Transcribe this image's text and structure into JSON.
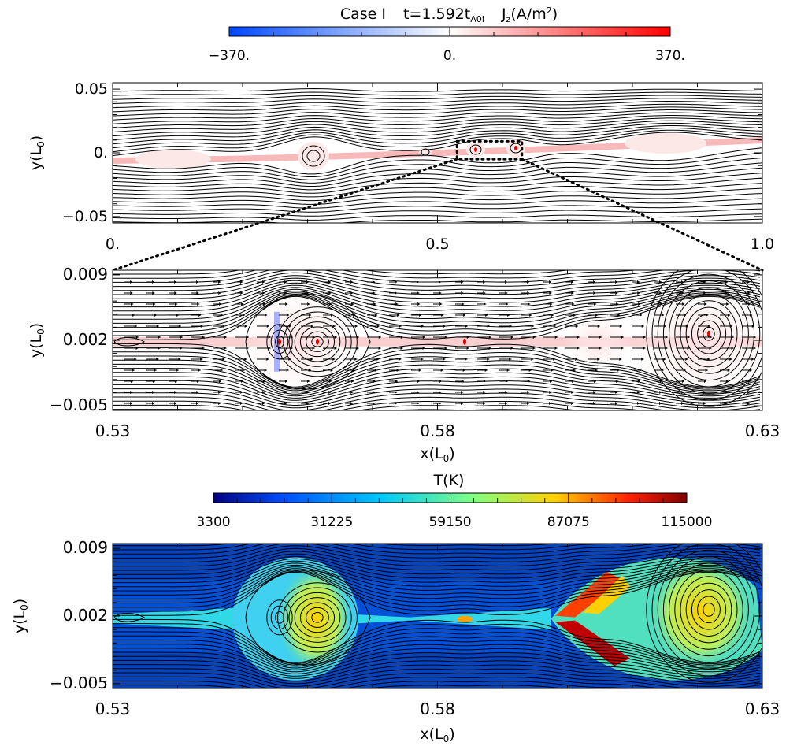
{
  "chart_data": [
    {
      "type": "heatmap",
      "panel": "Jz overview",
      "title": {
        "case": "Case I",
        "time_prefix": "t=1.592t",
        "time_sub": "A0I",
        "var": "J",
        "var_sub": "z",
        "units_open": "(A/m",
        "units_sup": "2",
        "units_close": ")"
      },
      "colorbar": {
        "ticks": [
          "−370.",
          "0.",
          "370."
        ],
        "vmin": -370,
        "vmax": 370,
        "colors": [
          "#0047ff",
          "#ffffff",
          "#ff0000"
        ]
      },
      "xlabel": "",
      "ylabel": {
        "main": "y(L",
        "sub": "0",
        "close": ")"
      },
      "xlim": [
        0.0,
        1.0
      ],
      "ylim": [
        -0.055,
        0.055
      ],
      "xticks": [
        "0.",
        "0.5",
        "1.0"
      ],
      "yticks": [
        "0.05",
        "0.",
        "−0.05"
      ],
      "zoom_box": {
        "x": [
          0.53,
          0.63
        ],
        "y": [
          -0.005,
          0.009
        ]
      },
      "islands_x": [
        0.31,
        0.49,
        0.56,
        0.62,
        0.84
      ]
    },
    {
      "type": "heatmap",
      "panel": "Jz zoom with velocity vectors",
      "xlabel": {
        "main": "x(L",
        "sub": "0",
        "close": ")"
      },
      "ylabel": {
        "main": "y(L",
        "sub": "0",
        "close": ")"
      },
      "xlim": [
        0.53,
        0.63
      ],
      "ylim": [
        -0.0055,
        0.0095
      ],
      "xticks": [
        "0.53",
        "0.58",
        "0.63"
      ],
      "yticks": [
        "0.009",
        "0.002",
        "−0.005"
      ],
      "islands_x": [
        0.556,
        0.562,
        0.6205
      ],
      "xpoints_x": [
        0.578,
        0.585
      ]
    },
    {
      "type": "heatmap",
      "panel": "Temperature zoom",
      "colorbar": {
        "label": "T(K)",
        "ticks": [
          "3300",
          "31225",
          "59150",
          "87075",
          "115000"
        ],
        "vmin": 3300,
        "vmax": 115000,
        "colors": [
          "#000080",
          "#0050ff",
          "#00c8ff",
          "#80ff80",
          "#ffd000",
          "#ff2000",
          "#800000"
        ]
      },
      "xlabel": {
        "main": "x(L",
        "sub": "0",
        "close": ")"
      },
      "ylabel": {
        "main": "y(L",
        "sub": "0",
        "close": ")"
      },
      "xlim": [
        0.53,
        0.63
      ],
      "ylim": [
        -0.0055,
        0.0095
      ],
      "xticks": [
        "0.53",
        "0.58",
        "0.63"
      ],
      "yticks": [
        "0.009",
        "0.002",
        "−0.005"
      ]
    }
  ]
}
